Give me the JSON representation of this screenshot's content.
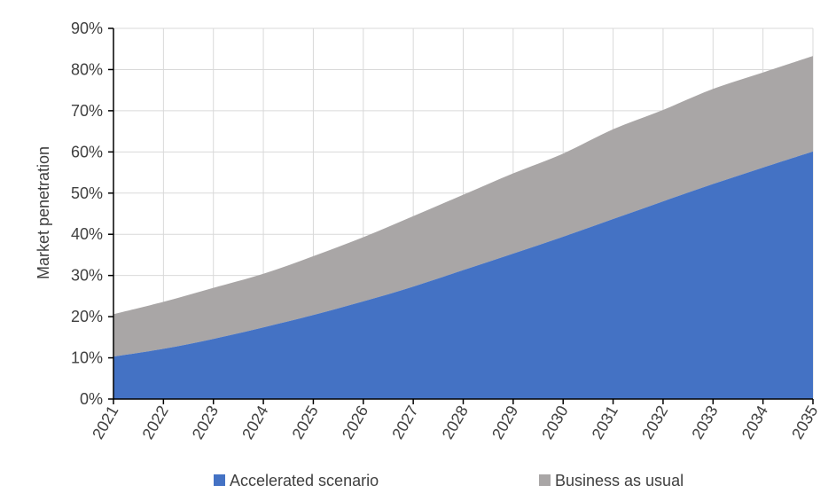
{
  "chart_data": {
    "type": "area",
    "stacked": true,
    "x": [
      "2021",
      "2022",
      "2023",
      "2024",
      "2025",
      "2026",
      "2027",
      "2028",
      "2029",
      "2030",
      "2031",
      "2032",
      "2033",
      "2034",
      "2035"
    ],
    "series": [
      {
        "name": "Accelerated scenario",
        "color": "#4472c4",
        "values": [
          10.3,
          12.2,
          14.6,
          17.4,
          20.4,
          23.7,
          27.3,
          31.3,
          35.3,
          39.4,
          43.7,
          48.0,
          52.2,
          56.2,
          60.1
        ]
      },
      {
        "name": "Business as usual",
        "color": "#a9a6a6",
        "values": [
          10.3,
          11.4,
          12.4,
          13.0,
          14.3,
          15.6,
          17.1,
          18.3,
          19.5,
          20.2,
          21.8,
          22.2,
          23.1,
          23.1,
          23.2
        ]
      }
    ],
    "ylabel": "Market penetration",
    "xlabel": "",
    "ylim": [
      0,
      90
    ],
    "yticks": [
      "0%",
      "10%",
      "20%",
      "30%",
      "40%",
      "50%",
      "60%",
      "70%",
      "80%",
      "90%"
    ],
    "grid": true,
    "legend_position": "bottom"
  }
}
